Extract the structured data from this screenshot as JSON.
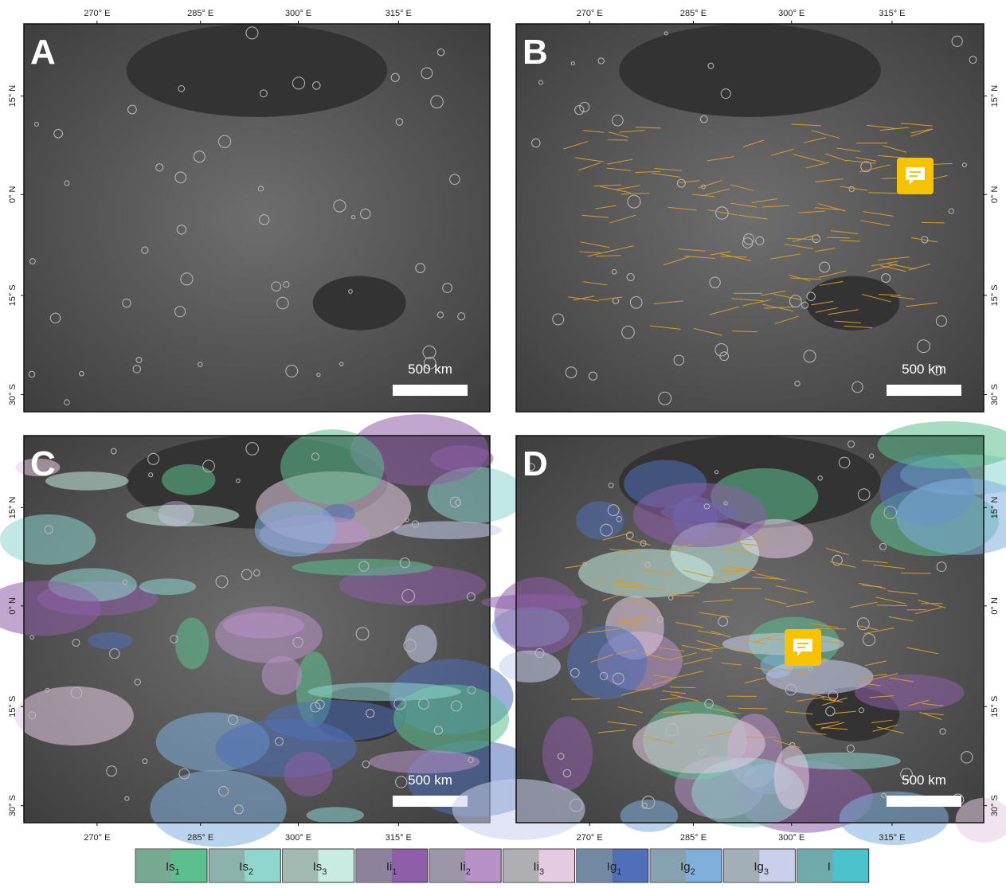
{
  "x_labels": [
    "270° E",
    "285° E",
    "300° E",
    "315° E"
  ],
  "y_labels": [
    "15° N",
    "0° N",
    "15° S",
    "30° S"
  ],
  "panels": [
    {
      "letter": "A",
      "scale_bar": "500 km"
    },
    {
      "letter": "B",
      "scale_bar": "500 km"
    },
    {
      "letter": "C",
      "scale_bar": "500 km"
    },
    {
      "letter": "D",
      "scale_bar": "500 km"
    }
  ],
  "legend": [
    {
      "base": "Is",
      "sub": "1",
      "color": "#5cc08e"
    },
    {
      "base": "Is",
      "sub": "2",
      "color": "#8fd6cf"
    },
    {
      "base": "Is",
      "sub": "3",
      "color": "#c9ece2"
    },
    {
      "base": "Ii",
      "sub": "1",
      "color": "#8e5fa8"
    },
    {
      "base": "Ii",
      "sub": "2",
      "color": "#b891c8"
    },
    {
      "base": "Ii",
      "sub": "3",
      "color": "#e5cce2"
    },
    {
      "base": "Ig",
      "sub": "1",
      "color": "#4f70b8"
    },
    {
      "base": "Ig",
      "sub": "2",
      "color": "#7fb0dc"
    },
    {
      "base": "Ig",
      "sub": "3",
      "color": "#c8d0ec"
    },
    {
      "base": "I",
      "color": "#4ac3cc"
    }
  ]
}
